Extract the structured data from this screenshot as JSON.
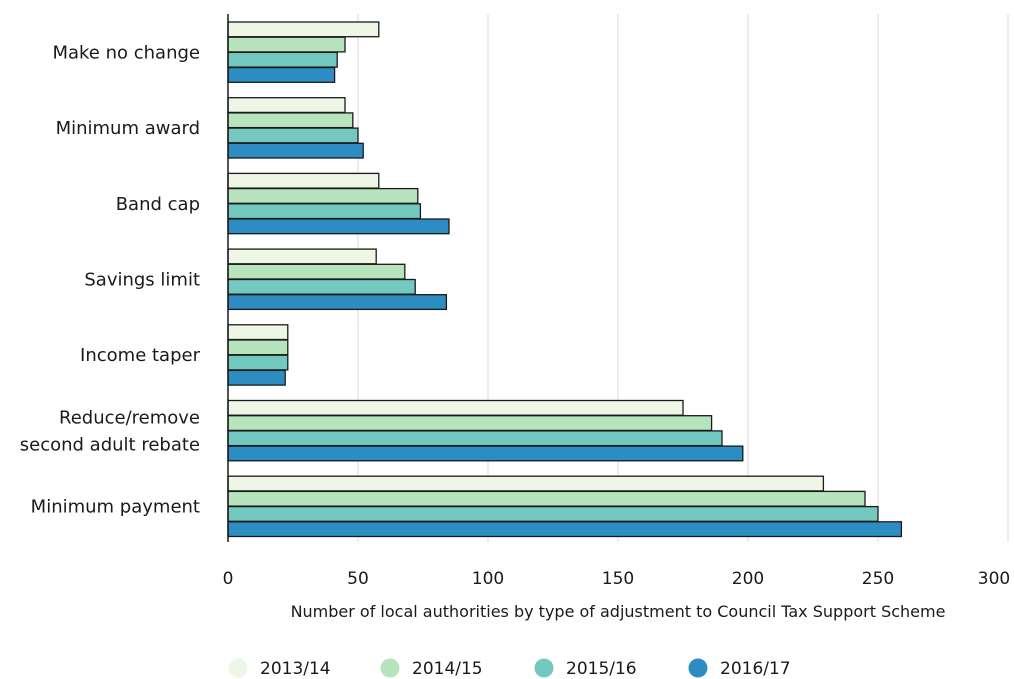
{
  "chart_data": {
    "type": "bar",
    "orientation": "horizontal",
    "categories": [
      [
        "Make no change"
      ],
      [
        "Minimum award"
      ],
      [
        "Band cap"
      ],
      [
        "Savings limit"
      ],
      [
        "Income taper"
      ],
      [
        "Reduce/remove",
        "second adult rebate"
      ],
      [
        "Minimum payment"
      ]
    ],
    "series": [
      {
        "name": "2013/14",
        "color": "#eef7e6",
        "values": [
          58,
          45,
          58,
          57,
          23,
          175,
          229
        ]
      },
      {
        "name": "2014/15",
        "color": "#b7e3bd",
        "values": [
          45,
          48,
          73,
          68,
          23,
          186,
          245
        ]
      },
      {
        "name": "2015/16",
        "color": "#73c8c0",
        "values": [
          42,
          50,
          74,
          72,
          23,
          190,
          250
        ]
      },
      {
        "name": "2016/17",
        "color": "#2d8dc3",
        "values": [
          41,
          52,
          85,
          84,
          22,
          198,
          259
        ]
      }
    ],
    "xlim": [
      0,
      300
    ],
    "xticks": [
      "0",
      "50",
      "100",
      "150",
      "200",
      "250",
      "300"
    ],
    "xlabel": "Number of local authorities by type of adjustment to Council Tax Support Scheme",
    "grid": "vertical",
    "legend": "bottom"
  }
}
